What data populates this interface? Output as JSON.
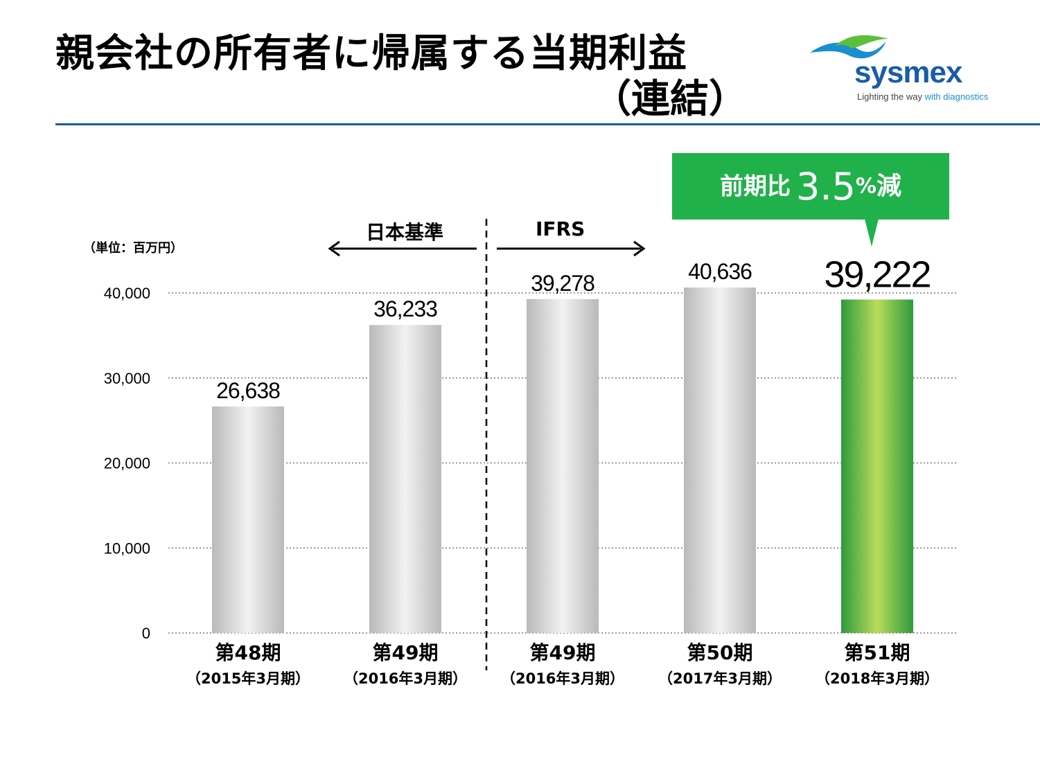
{
  "header": {
    "title_line1": "親会社の所有者に帰属する当期利益",
    "title_line2": "（連結）"
  },
  "logo": {
    "wordmark": "sysmex",
    "tagline_prefix": "Lighting the way ",
    "tagline_highlight": "with diagnostics"
  },
  "callout": {
    "prefix": "前期比",
    "value": "3.5",
    "percent": "%",
    "suffix": "減"
  },
  "standards": {
    "left": "日本基準",
    "right": "IFRS"
  },
  "colors": {
    "accent_green": "#21b14b",
    "rule_blue": "#1f5a93",
    "gray_bar": "#c8c8c8"
  },
  "chart_data": {
    "type": "bar",
    "title": "親会社の所有者に帰属する当期利益（連結）",
    "unit_label": "（単位：百万円）",
    "xlabel": "",
    "ylabel": "",
    "ylim": [
      0,
      40000
    ],
    "y_ticks": [
      0,
      10000,
      20000,
      30000,
      40000
    ],
    "y_tick_labels": [
      "0",
      "10,000",
      "20,000",
      "30,000",
      "40,000"
    ],
    "grid": true,
    "categories": [
      "第48期",
      "第49期",
      "第49期",
      "第50期",
      "第51期"
    ],
    "sub_labels": [
      "（2015年3月期）",
      "（2016年3月期）",
      "（2016年3月期）",
      "（2017年3月期）",
      "（2018年3月期）"
    ],
    "values": [
      26638,
      36233,
      39278,
      40636,
      39222
    ],
    "value_labels": [
      "26,638",
      "36,233",
      "39,278",
      "40,636",
      "39,222"
    ],
    "highlight_index": 4,
    "divider_after_index": 1
  }
}
